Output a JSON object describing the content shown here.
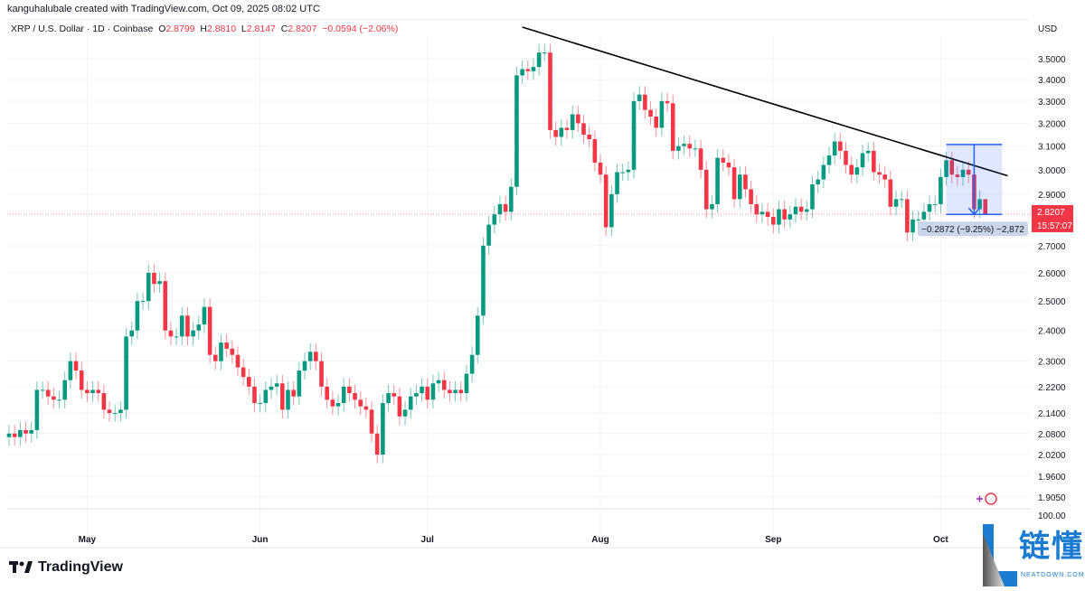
{
  "credit": "kanguhalubale created with TradingView.com, Oct 09, 2025 08:02 UTC",
  "symbol": "XRP / U.S. Dollar · 1D · Coinbase",
  "ohlc": {
    "o_label": "O",
    "o": "2.8799",
    "h_label": "H",
    "h": "2.8810",
    "l_label": "L",
    "l": "2.8147",
    "c_label": "C",
    "c": "2.8207",
    "change": "−0.0594 (−2.06%)"
  },
  "currency": "USD",
  "colors": {
    "up": "#089981",
    "down": "#f23645",
    "trendline": "#000000",
    "measure": "#2962ff"
  },
  "chart_data": {
    "type": "candlestick",
    "scale": "log",
    "ylim": [
      1.86,
      3.72
    ],
    "y_ticks": [
      "3.5000",
      "3.4000",
      "3.3000",
      "3.2000",
      "3.1000",
      "3.0000",
      "2.9000",
      "2.7000",
      "2.6000",
      "2.5000",
      "2.4000",
      "2.3000",
      "2.2200",
      "2.1400",
      "2.0800",
      "2.0200",
      "1.9600",
      "1.9050"
    ],
    "x_ticks": [
      {
        "label": "May",
        "day": 14
      },
      {
        "label": "Jun",
        "day": 45
      },
      {
        "label": "Jul",
        "day": 75
      },
      {
        "label": "Aug",
        "day": 106
      },
      {
        "label": "Sep",
        "day": 137
      },
      {
        "label": "Oct",
        "day": 167
      }
    ],
    "close": [
      2.08,
      2.07,
      2.09,
      2.08,
      2.09,
      2.21,
      2.21,
      2.19,
      2.18,
      2.18,
      2.24,
      2.3,
      2.27,
      2.21,
      2.2,
      2.21,
      2.2,
      2.15,
      2.14,
      2.14,
      2.15,
      2.38,
      2.4,
      2.5,
      2.5,
      2.6,
      2.56,
      2.57,
      2.4,
      2.38,
      2.38,
      2.45,
      2.38,
      2.4,
      2.42,
      2.48,
      2.32,
      2.3,
      2.36,
      2.34,
      2.32,
      2.28,
      2.25,
      2.22,
      2.17,
      2.17,
      2.21,
      2.22,
      2.23,
      2.15,
      2.21,
      2.19,
      2.27,
      2.3,
      2.33,
      2.3,
      2.22,
      2.18,
      2.16,
      2.17,
      2.22,
      2.2,
      2.18,
      2.16,
      2.15,
      2.08,
      2.02,
      2.17,
      2.2,
      2.19,
      2.13,
      2.15,
      2.19,
      2.2,
      2.22,
      2.18,
      2.23,
      2.24,
      2.21,
      2.2,
      2.21,
      2.2,
      2.26,
      2.32,
      2.45,
      2.7,
      2.78,
      2.82,
      2.86,
      2.83,
      2.93,
      3.42,
      3.45,
      3.44,
      3.46,
      3.53,
      3.53,
      3.17,
      3.14,
      3.18,
      3.17,
      3.24,
      3.2,
      3.15,
      3.13,
      3.03,
      2.98,
      2.77,
      2.9,
      2.99,
      2.99,
      3.0,
      3.3,
      3.33,
      3.26,
      3.23,
      3.18,
      3.3,
      3.29,
      3.08,
      3.1,
      3.11,
      3.09,
      3.09,
      3.0,
      2.84,
      2.86,
      3.05,
      3.03,
      3.01,
      2.88,
      2.98,
      2.92,
      2.86,
      2.82,
      2.83,
      2.81,
      2.78,
      2.84,
      2.8,
      2.82,
      2.85,
      2.83,
      2.84,
      2.94,
      2.96,
      3.02,
      3.06,
      3.12,
      3.08,
      3.02,
      2.98,
      3.01,
      3.07,
      3.08,
      2.99,
      2.98,
      2.96,
      2.85,
      2.88,
      2.88,
      2.75,
      2.8,
      2.8,
      2.83,
      2.86,
      2.86,
      2.97,
      3.04,
      2.98,
      2.97,
      3.0,
      2.98,
      2.84,
      2.88,
      2.8207
    ],
    "last": {
      "open": 2.8799,
      "high": 2.881,
      "low": 2.8147,
      "close": 2.8207
    },
    "last_price_label": "2.8207",
    "countdown": "15:57:07",
    "trendline": {
      "from": {
        "day": 92,
        "price": 3.657
      },
      "to": {
        "day": 179,
        "price": 2.975
      }
    },
    "measure": {
      "from_day": 168,
      "to_day": 178,
      "top": 3.107,
      "bottom": 2.8198,
      "label": "−0.2872 (−9.25%) −2,872"
    },
    "lower_pane_label": "100.00"
  },
  "branding": {
    "tv": "TradingView",
    "wm_cn": "链懂",
    "wm_en": "NEATDOWN.COM"
  }
}
